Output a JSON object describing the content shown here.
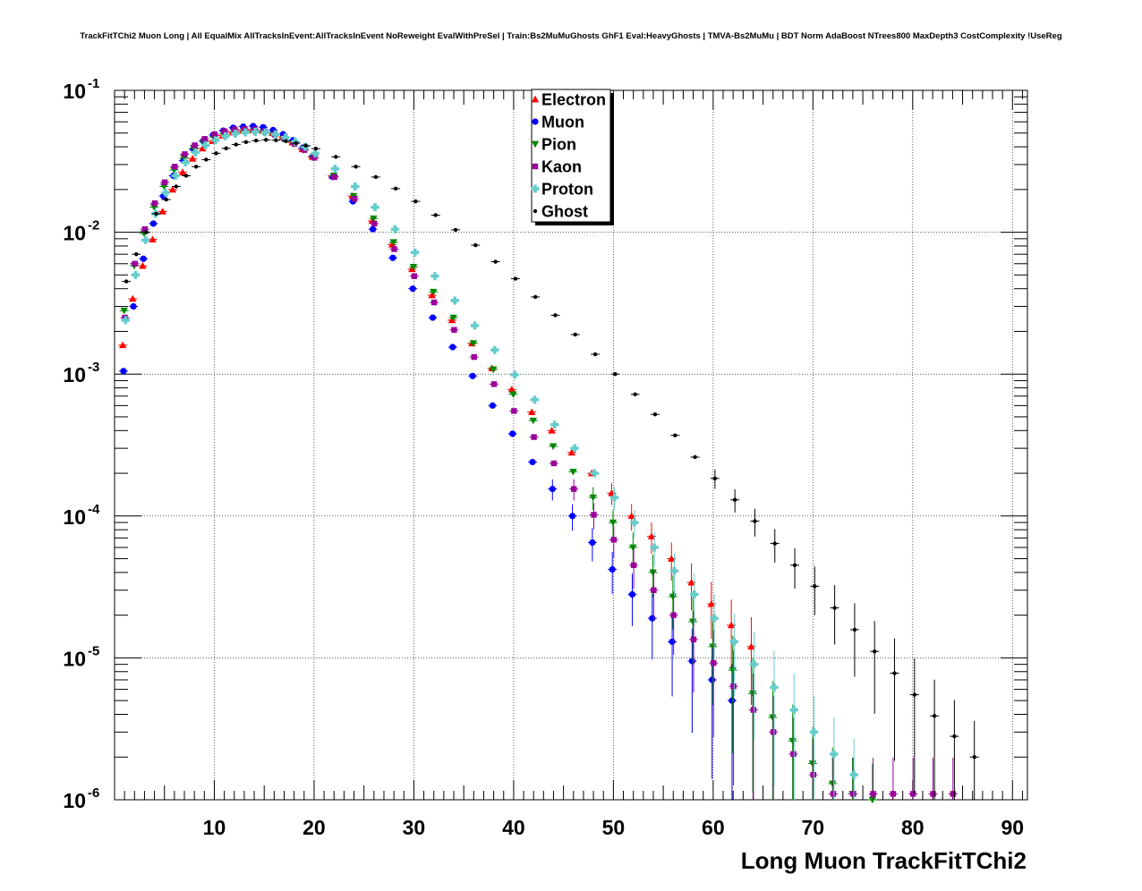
{
  "chart_data": {
    "type": "scatter",
    "title": "TrackFitTChi2 Muon Long | All EqualMix AllTracksInEvent:AllTracksInEvent NoReweight EvalWithPreSel | Train:Bs2MuMuGhosts GhF1 Eval:HeavyGhosts | TMVA-Bs2MuMu | BDT Norm AdaBoost NTrees800 MaxDepth3 CostComplexity !UseReg",
    "xlabel": "Long Muon TrackFitTChi2",
    "ylabel": "",
    "xlim": [
      0,
      91.5
    ],
    "ylim": [
      1e-06,
      0.1
    ],
    "yscale": "log",
    "grid": true,
    "legend_position": "top-center",
    "x_ticks": [
      10,
      20,
      30,
      40,
      50,
      60,
      70,
      80,
      90
    ],
    "x_tick_labels": [
      "10",
      "20",
      "30",
      "40",
      "50",
      "60",
      "70",
      "80",
      "90"
    ],
    "y_ticks": [
      1e-06,
      1e-05,
      0.0001,
      0.001,
      0.01,
      0.1
    ],
    "y_tick_labels": [
      {
        "base": "10",
        "exp": "-6"
      },
      {
        "base": "10",
        "exp": "-5"
      },
      {
        "base": "10",
        "exp": "-4"
      },
      {
        "base": "10",
        "exp": "-3"
      },
      {
        "base": "10",
        "exp": "-2"
      },
      {
        "base": "10",
        "exp": "-1"
      }
    ],
    "series": [
      {
        "name": "Electron",
        "color": "#ff0000",
        "marker": "triangle-up",
        "x": [
          1,
          2,
          3,
          4,
          5,
          6,
          7,
          8,
          9,
          10,
          11,
          12,
          13,
          14,
          15,
          16,
          17,
          18,
          19,
          20,
          22,
          24,
          26,
          28,
          30,
          32,
          34,
          36,
          38,
          40,
          42,
          44,
          46,
          48,
          50,
          52,
          54,
          56,
          58,
          60,
          62,
          64
        ],
        "y": [
          0.0016,
          0.0034,
          0.0058,
          0.0089,
          0.014,
          0.02,
          0.0265,
          0.033,
          0.039,
          0.044,
          0.048,
          0.0505,
          0.052,
          0.0525,
          0.052,
          0.05,
          0.047,
          0.043,
          0.0385,
          0.034,
          0.025,
          0.018,
          0.012,
          0.0082,
          0.0055,
          0.0036,
          0.0024,
          0.00165,
          0.0011,
          0.00078,
          0.00054,
          0.0004,
          0.00028,
          0.0002,
          0.000145,
          0.0001,
          7.2e-05,
          5e-05,
          3.4e-05,
          2.4e-05,
          1.7e-05,
          1.2e-05
        ]
      },
      {
        "name": "Muon",
        "color": "#0000ff",
        "marker": "circle",
        "x": [
          1,
          2,
          3,
          4,
          5,
          6,
          7,
          8,
          9,
          10,
          11,
          12,
          13,
          14,
          15,
          16,
          17,
          18,
          19,
          20,
          22,
          24,
          26,
          28,
          30,
          32,
          34,
          36,
          38,
          40,
          42,
          44,
          46,
          48,
          50,
          52,
          54,
          56,
          58,
          60,
          62
        ],
        "y": [
          0.00105,
          0.003,
          0.0065,
          0.0115,
          0.018,
          0.025,
          0.032,
          0.0385,
          0.044,
          0.0485,
          0.052,
          0.0545,
          0.0555,
          0.056,
          0.055,
          0.0525,
          0.049,
          0.0445,
          0.0395,
          0.0345,
          0.0245,
          0.0165,
          0.0105,
          0.0066,
          0.004,
          0.0025,
          0.00155,
          0.00097,
          0.0006,
          0.00038,
          0.00024,
          0.000155,
          0.0001,
          6.5e-05,
          4.2e-05,
          2.8e-05,
          1.9e-05,
          1.3e-05,
          9.5e-06,
          7e-06,
          5e-06
        ]
      },
      {
        "name": "Pion",
        "color": "#008800",
        "marker": "triangle-down",
        "x": [
          1,
          2,
          3,
          4,
          5,
          6,
          7,
          8,
          9,
          10,
          11,
          12,
          13,
          14,
          15,
          16,
          17,
          18,
          19,
          20,
          22,
          24,
          26,
          28,
          30,
          32,
          34,
          36,
          38,
          40,
          42,
          44,
          46,
          48,
          50,
          52,
          54,
          56,
          58,
          60,
          62,
          64,
          66,
          68,
          70,
          72,
          74,
          76
        ],
        "y": [
          0.0028,
          0.0058,
          0.0098,
          0.015,
          0.021,
          0.0275,
          0.0335,
          0.039,
          0.0435,
          0.047,
          0.0495,
          0.051,
          0.0515,
          0.0515,
          0.0505,
          0.0485,
          0.0455,
          0.042,
          0.038,
          0.0335,
          0.025,
          0.018,
          0.0125,
          0.0085,
          0.0057,
          0.0038,
          0.0025,
          0.00165,
          0.00108,
          0.00072,
          0.00047,
          0.00031,
          0.000205,
          0.000135,
          9e-05,
          6e-05,
          4e-05,
          2.7e-05,
          1.8e-05,
          1.2e-05,
          8.2e-06,
          5.6e-06,
          3.8e-06,
          2.6e-06,
          1.8e-06,
          1.3e-06,
          1.1e-06,
          1e-06
        ]
      },
      {
        "name": "Kaon",
        "color": "#990099",
        "marker": "square",
        "x": [
          1,
          2,
          3,
          4,
          5,
          6,
          7,
          8,
          9,
          10,
          11,
          12,
          13,
          14,
          15,
          16,
          17,
          18,
          19,
          20,
          22,
          24,
          26,
          28,
          30,
          32,
          34,
          36,
          38,
          40,
          42,
          44,
          46,
          48,
          50,
          52,
          54,
          56,
          58,
          60,
          62,
          64,
          66,
          68,
          70,
          72,
          74,
          76,
          78,
          80,
          82,
          84
        ],
        "y": [
          0.0025,
          0.006,
          0.0105,
          0.016,
          0.0225,
          0.029,
          0.0355,
          0.041,
          0.0455,
          0.049,
          0.0515,
          0.053,
          0.0535,
          0.053,
          0.0515,
          0.049,
          0.046,
          0.042,
          0.038,
          0.0335,
          0.0245,
          0.0172,
          0.0115,
          0.0076,
          0.0049,
          0.0032,
          0.00205,
          0.00132,
          0.00085,
          0.00055,
          0.00036,
          0.000235,
          0.000155,
          0.000102,
          6.8e-05,
          4.5e-05,
          3e-05,
          2e-05,
          1.35e-05,
          9.2e-06,
          6.3e-06,
          4.3e-06,
          3e-06,
          2.1e-06,
          1.5e-06,
          1.1e-06,
          1.1e-06,
          1.1e-06,
          1.1e-06,
          1.1e-06,
          1.1e-06,
          1.1e-06
        ]
      },
      {
        "name": "Proton",
        "color": "#66cccc",
        "marker": "cross",
        "x": [
          1,
          2,
          3,
          4,
          5,
          6,
          7,
          8,
          9,
          10,
          11,
          12,
          13,
          14,
          15,
          16,
          17,
          18,
          19,
          20,
          22,
          24,
          26,
          28,
          30,
          32,
          34,
          36,
          38,
          40,
          42,
          44,
          46,
          48,
          50,
          52,
          54,
          56,
          58,
          60,
          62,
          64,
          66,
          68,
          70,
          72,
          74
        ],
        "y": [
          0.0024,
          0.005,
          0.0088,
          0.0135,
          0.019,
          0.025,
          0.031,
          0.0365,
          0.041,
          0.0445,
          0.0475,
          0.0495,
          0.0505,
          0.051,
          0.0505,
          0.049,
          0.0465,
          0.0435,
          0.04,
          0.036,
          0.028,
          0.021,
          0.015,
          0.0105,
          0.0072,
          0.0049,
          0.0033,
          0.0022,
          0.00148,
          0.00099,
          0.00066,
          0.00044,
          0.0003,
          0.0002,
          0.000135,
          9e-05,
          6e-05,
          4.1e-05,
          2.8e-05,
          1.9e-05,
          1.3e-05,
          9e-06,
          6.2e-06,
          4.3e-06,
          3e-06,
          2.1e-06,
          1.5e-06
        ]
      },
      {
        "name": "Ghost",
        "color": "#000000",
        "marker": "dot",
        "x": [
          1,
          2,
          3,
          4,
          5,
          6,
          7,
          8,
          9,
          10,
          11,
          12,
          13,
          14,
          15,
          16,
          17,
          18,
          19,
          20,
          22,
          24,
          26,
          28,
          30,
          32,
          34,
          36,
          38,
          40,
          42,
          44,
          46,
          48,
          50,
          52,
          54,
          56,
          58,
          60,
          62,
          64,
          66,
          68,
          70,
          72,
          74,
          76,
          78,
          80,
          82,
          84,
          86
        ],
        "y": [
          0.0045,
          0.007,
          0.01,
          0.0135,
          0.017,
          0.021,
          0.025,
          0.029,
          0.0325,
          0.036,
          0.039,
          0.0415,
          0.0432,
          0.0442,
          0.0448,
          0.0445,
          0.0438,
          0.0425,
          0.0408,
          0.0388,
          0.034,
          0.029,
          0.0245,
          0.0203,
          0.0165,
          0.0132,
          0.0104,
          0.0081,
          0.0062,
          0.0047,
          0.0035,
          0.0026,
          0.0019,
          0.00138,
          0.001,
          0.00072,
          0.00052,
          0.00037,
          0.00026,
          0.000184,
          0.00013,
          9.2e-05,
          6.4e-05,
          4.5e-05,
          3.2e-05,
          2.25e-05,
          1.58e-05,
          1.11e-05,
          7.8e-06,
          5.5e-06,
          3.9e-06,
          2.8e-06,
          2e-06
        ]
      }
    ]
  }
}
